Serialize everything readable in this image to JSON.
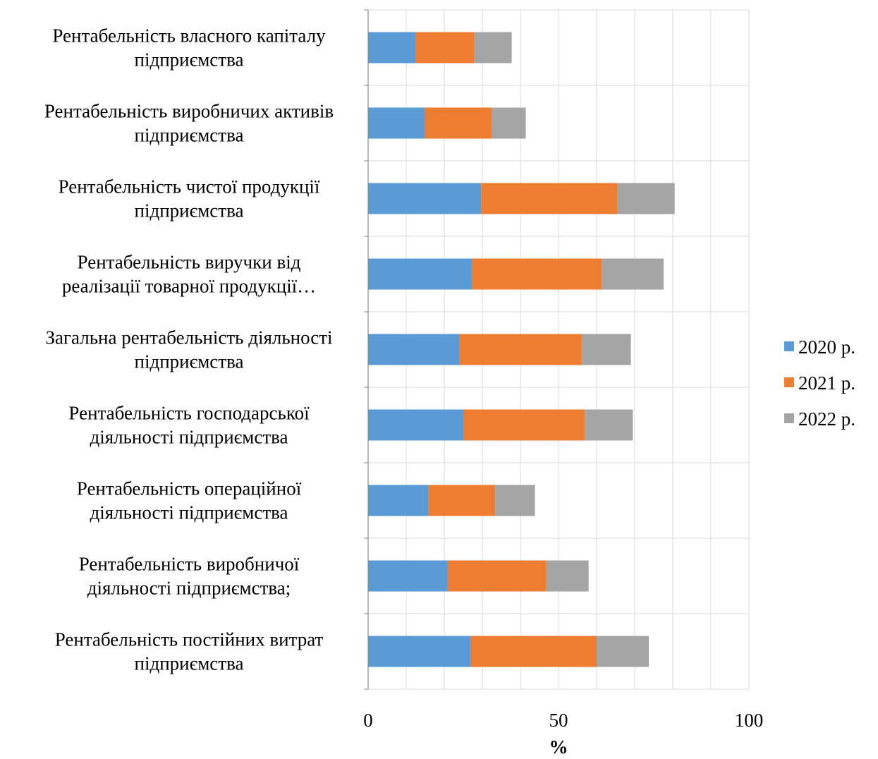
{
  "chart_data": {
    "type": "bar",
    "orientation": "horizontal",
    "stacked": true,
    "title": "",
    "xlabel": "%",
    "ylabel": "",
    "xlim": [
      0,
      100
    ],
    "x_ticks": [
      "0",
      "50",
      "100"
    ],
    "grid": true,
    "legend_position": "right",
    "categories": [
      "Рентабельність власного капіталу підприємства",
      "Рентабельність виробничих активів підприємства",
      "Рентабельність чистої продукції підприємства",
      "Рентабельність виручки від реалізації товарної продукції…",
      "Загальна рентабельність діяльності підприємства",
      "Рентабельність господарської діяльності підприємства",
      "Рентабельність операційної діяльності підприємства",
      "Рентабельність виробничої діяльності підприємства;",
      "Рентабельність постійних витрат підприємства"
    ],
    "category_lines": [
      [
        "Рентабельність власного капіталу",
        "підприємства"
      ],
      [
        "Рентабельність виробничих активів",
        "підприємства"
      ],
      [
        "Рентабельність чистої продукції",
        "підприємства"
      ],
      [
        "Рентабельність виручки від",
        "реалізації товарної продукції…"
      ],
      [
        "Загальна рентабельність діяльності",
        "підприємства"
      ],
      [
        "Рентабельність господарської",
        "діяльності підприємства"
      ],
      [
        "Рентабельність операційної",
        "діяльності підприємства"
      ],
      [
        "Рентабельність виробничої",
        "діяльності підприємства;"
      ],
      [
        "Рентабельність постійних витрат",
        "підприємства"
      ]
    ],
    "series": [
      {
        "name": "2020 р.",
        "color": "#5b9bd5",
        "values": [
          12.4,
          14.9,
          29.7,
          27.3,
          23.9,
          25.1,
          15.9,
          20.9,
          26.9
        ]
      },
      {
        "name": "2021 р.",
        "color": "#ed7d31",
        "values": [
          15.5,
          17.5,
          35.8,
          34.0,
          32.2,
          31.8,
          17.5,
          25.9,
          33.1
        ]
      },
      {
        "name": "2022 р.",
        "color": "#a5a5a5",
        "values": [
          9.8,
          9.0,
          15.0,
          16.3,
          12.9,
          12.6,
          10.4,
          11.1,
          13.7
        ]
      }
    ]
  }
}
